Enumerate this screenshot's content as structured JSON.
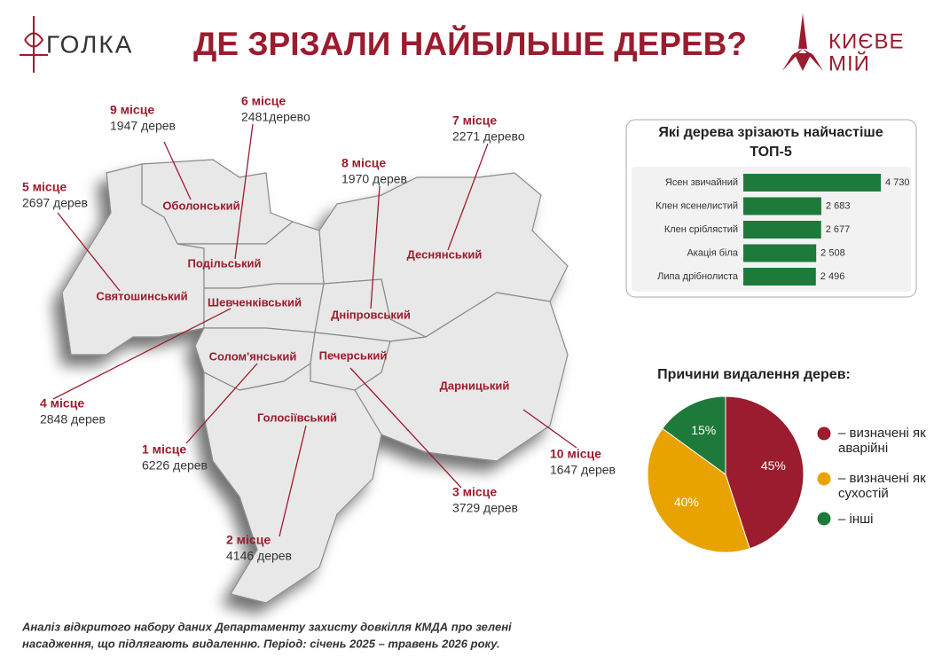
{
  "header": {
    "logo_left": "ГОЛКА",
    "title": "ДЕ ЗРІЗАЛИ НАЙБІЛЬШЕ ДЕРЕВ?",
    "logo_right": [
      "КИЄВЕ",
      "МІЙ"
    ]
  },
  "map": {
    "districts": [
      {
        "name": "Оболонський",
        "rank": "9 місце",
        "trees": "1947 дерев"
      },
      {
        "name": "Подільський",
        "rank": "6 місце",
        "trees": "2481дерево"
      },
      {
        "name": "Деснянський",
        "rank": "7 місце",
        "trees": "2271 дерево"
      },
      {
        "name": "Святошинський",
        "rank": "5 місце",
        "trees": "2697 дерев"
      },
      {
        "name": "Дніпровський",
        "rank": "8 місце",
        "trees": "1970 дерев"
      },
      {
        "name": "Шевченківський",
        "rank": "4 місце",
        "trees": "2848 дерев"
      },
      {
        "name": "Солом'янський",
        "rank": "1 місце",
        "trees": "6226 дерев"
      },
      {
        "name": "Дарницький",
        "rank": "10 місце",
        "trees": "1647 дерев"
      },
      {
        "name": "Печерський",
        "rank": "3 місце",
        "trees": "3729 дерев"
      },
      {
        "name": "Голосіївський",
        "rank": "2 місце",
        "trees": "4146 дерев"
      }
    ]
  },
  "chart_data": [
    {
      "type": "bar",
      "title": "Які дерева зрізають найчастіше",
      "subtitle": "ТОП-5",
      "categories": [
        "Ясен звичайний",
        "Клен ясенелистий",
        "Клен сріблястий",
        "Акація біла",
        "Липа дрібнолиста"
      ],
      "values": [
        4730,
        2683,
        2677,
        2508,
        2496
      ],
      "value_labels": [
        "4 730",
        "2 683",
        "2 677",
        "2 508",
        "2 496"
      ],
      "color": "#1e7a3a"
    },
    {
      "type": "pie",
      "title": "Причини видалення дерев:",
      "categories": [
        "– визначені як аварійні",
        "– визначені як сухостій",
        "– інші"
      ],
      "values": [
        45,
        40,
        15
      ],
      "value_labels": [
        "45%",
        "40%",
        "15%"
      ],
      "colors": [
        "#9b1c2e",
        "#e8a300",
        "#1e7a3a"
      ]
    }
  ],
  "footnote": [
    "Аналіз відкритого набору даних Департаменту захисту довкілля КМДА про зелені",
    "насадження, що підлягають видаленню. Період: січень 2025 – травень 2026 року."
  ]
}
